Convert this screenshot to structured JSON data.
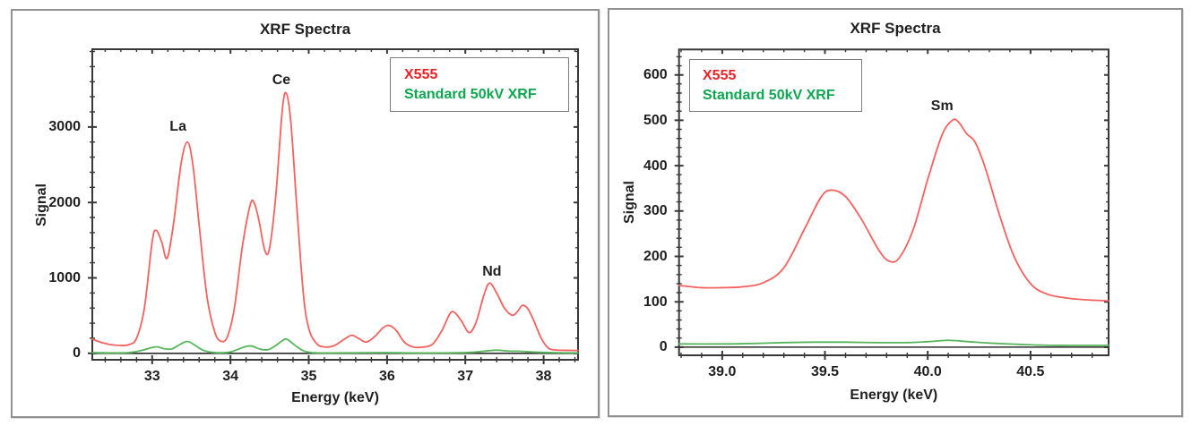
{
  "page": {
    "background": "#ffffff"
  },
  "charts": [
    {
      "title": "XRF Spectra",
      "xlabel": "Energy (keV)",
      "ylabel": "Signal",
      "legend": {
        "position": "top-right",
        "entries": [
          {
            "label": "X555",
            "color": "#ec2227"
          },
          {
            "label": "Standard 50kV XRF",
            "color": "#0ca74f"
          }
        ]
      },
      "chart_data": {
        "type": "line",
        "title": "XRF Spectra",
        "xlabel": "Energy (keV)",
        "ylabel": "Signal",
        "xlim": [
          32.235,
          38.44
        ],
        "ylim": [
          -85,
          4030
        ],
        "grid": false,
        "xticks": [
          {
            "v": 33,
            "label": "33"
          },
          {
            "v": 34,
            "label": "34"
          },
          {
            "v": 35,
            "label": "35"
          },
          {
            "v": 36,
            "label": "36"
          },
          {
            "v": 37,
            "label": "37"
          },
          {
            "v": 38,
            "label": "38"
          }
        ],
        "yticks": [
          {
            "v": 0,
            "label": "0"
          },
          {
            "v": 1000,
            "label": "1000"
          },
          {
            "v": 2000,
            "label": "2000"
          },
          {
            "v": 3000,
            "label": "3000"
          }
        ],
        "x_minor_step": 0.2,
        "y_minor_step": 200,
        "annotations": [
          {
            "label": "La",
            "x": 33.33,
            "y": 2995
          },
          {
            "label": "Ce",
            "x": 34.65,
            "y": 3610
          },
          {
            "label": "Nd",
            "x": 37.34,
            "y": 1075
          }
        ],
        "series": [
          {
            "name": "baseline",
            "color": "#2b2b2b",
            "width": 1.6,
            "points": [
              [
                32.235,
                0
              ],
              [
                38.44,
                0
              ]
            ]
          },
          {
            "name": "X555",
            "color": "#f4625f",
            "width": 1.8,
            "points": [
              [
                32.235,
                190
              ],
              [
                32.32,
                155
              ],
              [
                32.45,
                120
              ],
              [
                32.58,
                105
              ],
              [
                32.7,
                115
              ],
              [
                32.8,
                200
              ],
              [
                32.9,
                600
              ],
              [
                33.0,
                1480
              ],
              [
                33.05,
                1630
              ],
              [
                33.12,
                1480
              ],
              [
                33.19,
                1260
              ],
              [
                33.27,
                1700
              ],
              [
                33.37,
                2520
              ],
              [
                33.45,
                2800
              ],
              [
                33.52,
                2500
              ],
              [
                33.6,
                1700
              ],
              [
                33.7,
                750
              ],
              [
                33.8,
                280
              ],
              [
                33.88,
                160
              ],
              [
                33.96,
                220
              ],
              [
                34.05,
                600
              ],
              [
                34.15,
                1400
              ],
              [
                34.25,
                1960
              ],
              [
                34.3,
                2000
              ],
              [
                34.36,
                1780
              ],
              [
                34.44,
                1360
              ],
              [
                34.5,
                1400
              ],
              [
                34.58,
                2100
              ],
              [
                34.66,
                3200
              ],
              [
                34.71,
                3450
              ],
              [
                34.77,
                3080
              ],
              [
                34.85,
                1900
              ],
              [
                34.93,
                800
              ],
              [
                35.0,
                330
              ],
              [
                35.1,
                130
              ],
              [
                35.2,
                85
              ],
              [
                35.32,
                100
              ],
              [
                35.45,
                185
              ],
              [
                35.55,
                240
              ],
              [
                35.65,
                190
              ],
              [
                35.74,
                150
              ],
              [
                35.85,
                230
              ],
              [
                35.95,
                340
              ],
              [
                36.03,
                370
              ],
              [
                36.12,
                300
              ],
              [
                36.22,
                150
              ],
              [
                36.33,
                85
              ],
              [
                36.45,
                82
              ],
              [
                36.58,
                120
              ],
              [
                36.7,
                300
              ],
              [
                36.8,
                520
              ],
              [
                36.86,
                545
              ],
              [
                36.95,
                430
              ],
              [
                37.05,
                275
              ],
              [
                37.14,
                420
              ],
              [
                37.24,
                780
              ],
              [
                37.31,
                930
              ],
              [
                37.4,
                800
              ],
              [
                37.5,
                600
              ],
              [
                37.6,
                505
              ],
              [
                37.67,
                560
              ],
              [
                37.73,
                635
              ],
              [
                37.8,
                590
              ],
              [
                37.88,
                420
              ],
              [
                37.97,
                200
              ],
              [
                38.06,
                70
              ],
              [
                38.15,
                45
              ],
              [
                38.28,
                40
              ],
              [
                38.44,
                38
              ]
            ]
          },
          {
            "name": "Standard 50kV XRF",
            "color": "#57b65b",
            "width": 1.8,
            "points": [
              [
                32.235,
                10
              ],
              [
                32.5,
                6
              ],
              [
                32.7,
                10
              ],
              [
                32.85,
                35
              ],
              [
                33.0,
                78
              ],
              [
                33.07,
                85
              ],
              [
                33.15,
                62
              ],
              [
                33.25,
                58
              ],
              [
                33.35,
                115
              ],
              [
                33.45,
                158
              ],
              [
                33.55,
                105
              ],
              [
                33.65,
                42
              ],
              [
                33.78,
                12
              ],
              [
                33.9,
                8
              ],
              [
                34.0,
                18
              ],
              [
                34.1,
                55
              ],
              [
                34.2,
                92
              ],
              [
                34.28,
                95
              ],
              [
                34.38,
                55
              ],
              [
                34.48,
                48
              ],
              [
                34.58,
                105
              ],
              [
                34.68,
                180
              ],
              [
                34.73,
                182
              ],
              [
                34.82,
                110
              ],
              [
                34.92,
                40
              ],
              [
                35.02,
                12
              ],
              [
                35.15,
                5
              ],
              [
                35.4,
                6
              ],
              [
                35.7,
                8
              ],
              [
                36.0,
                10
              ],
              [
                36.3,
                5
              ],
              [
                36.6,
                5
              ],
              [
                36.9,
                8
              ],
              [
                37.1,
                15
              ],
              [
                37.25,
                30
              ],
              [
                37.4,
                42
              ],
              [
                37.55,
                30
              ],
              [
                37.7,
                28
              ],
              [
                37.85,
                18
              ],
              [
                38.0,
                12
              ],
              [
                38.2,
                8
              ],
              [
                38.44,
                6
              ]
            ]
          }
        ]
      }
    },
    {
      "title": "XRF Spectra",
      "xlabel": "Energy (keV)",
      "ylabel": "Signal",
      "legend": {
        "position": "top-left",
        "entries": [
          {
            "label": "X555",
            "color": "#ec2227"
          },
          {
            "label": "Standard 50kV XRF",
            "color": "#0ca74f"
          }
        ]
      },
      "chart_data": {
        "type": "line",
        "title": "XRF Spectra",
        "xlabel": "Energy (keV)",
        "ylabel": "Signal",
        "xlim": [
          38.79,
          40.88
        ],
        "ylim": [
          -18,
          656
        ],
        "grid": false,
        "xticks": [
          {
            "v": 39.0,
            "label": "39.0"
          },
          {
            "v": 39.5,
            "label": "39.5"
          },
          {
            "v": 40.0,
            "label": "40.0"
          },
          {
            "v": 40.5,
            "label": "40.5"
          }
        ],
        "yticks": [
          {
            "v": 0,
            "label": "0"
          },
          {
            "v": 100,
            "label": "100"
          },
          {
            "v": 200,
            "label": "200"
          },
          {
            "v": 300,
            "label": "300"
          },
          {
            "v": 400,
            "label": "400"
          },
          {
            "v": 500,
            "label": "500"
          },
          {
            "v": 600,
            "label": "600"
          }
        ],
        "x_minor_step": 0.1,
        "y_minor_step": 20,
        "annotations": [
          {
            "label": "Sm",
            "x": 40.07,
            "y": 530
          }
        ],
        "series": [
          {
            "name": "baseline",
            "color": "#2b2b2b",
            "width": 1.6,
            "points": [
              [
                38.79,
                0
              ],
              [
                40.88,
                0
              ]
            ]
          },
          {
            "name": "X555",
            "color": "#f4625f",
            "width": 1.8,
            "points": [
              [
                38.79,
                136
              ],
              [
                38.9,
                131
              ],
              [
                39.0,
                131
              ],
              [
                39.1,
                133
              ],
              [
                39.2,
                142
              ],
              [
                39.3,
                175
              ],
              [
                39.4,
                260
              ],
              [
                39.48,
                330
              ],
              [
                39.53,
                346
              ],
              [
                39.6,
                332
              ],
              [
                39.68,
                280
              ],
              [
                39.76,
                215
              ],
              [
                39.81,
                190
              ],
              [
                39.86,
                196
              ],
              [
                39.93,
                260
              ],
              [
                40.0,
                370
              ],
              [
                40.07,
                468
              ],
              [
                40.12,
                500
              ],
              [
                40.15,
                496
              ],
              [
                40.19,
                470
              ],
              [
                40.23,
                452
              ],
              [
                40.28,
                395
              ],
              [
                40.35,
                290
              ],
              [
                40.42,
                200
              ],
              [
                40.5,
                140
              ],
              [
                40.58,
                117
              ],
              [
                40.68,
                108
              ],
              [
                40.78,
                104
              ],
              [
                40.88,
                102
              ]
            ]
          },
          {
            "name": "Standard 50kV XRF",
            "color": "#57b65b",
            "width": 1.8,
            "points": [
              [
                38.79,
                7
              ],
              [
                39.0,
                7
              ],
              [
                39.15,
                8
              ],
              [
                39.3,
                10
              ],
              [
                39.45,
                11
              ],
              [
                39.6,
                11
              ],
              [
                39.75,
                10
              ],
              [
                39.9,
                10
              ],
              [
                40.0,
                12
              ],
              [
                40.1,
                15
              ],
              [
                40.2,
                12
              ],
              [
                40.3,
                9
              ],
              [
                40.45,
                6
              ],
              [
                40.6,
                4
              ],
              [
                40.75,
                4
              ],
              [
                40.88,
                4
              ]
            ]
          }
        ]
      }
    }
  ]
}
